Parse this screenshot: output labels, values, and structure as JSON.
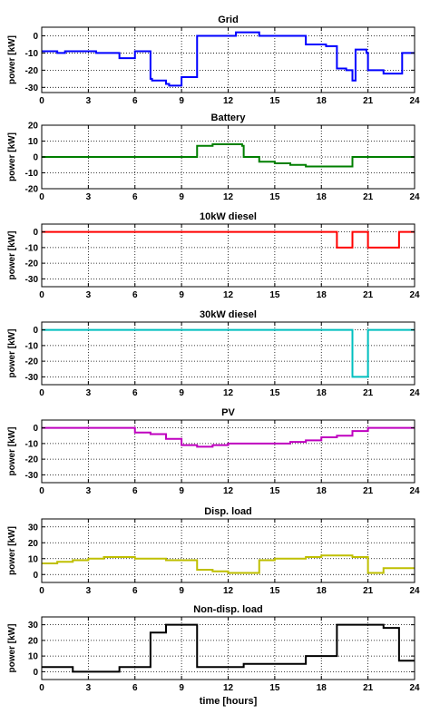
{
  "chart_data": [
    {
      "type": "line",
      "title": "Grid",
      "ylabel": "power [kW]",
      "xlabel": "",
      "xlim": [
        0,
        24
      ],
      "ylim": [
        -33,
        5
      ],
      "xticks": [
        0,
        3,
        6,
        9,
        12,
        15,
        18,
        21,
        24
      ],
      "yticks": [
        0,
        -10,
        -20,
        -30
      ],
      "grid": true,
      "color": "#0000ff",
      "series": [
        {
          "x": [
            0,
            1,
            1.5,
            3.5,
            5,
            6,
            7,
            7.1,
            8,
            8.2,
            9,
            10,
            12.5,
            14,
            17,
            18.3,
            19,
            19.6,
            20,
            20.2,
            20.9,
            21,
            22,
            23.2,
            24
          ],
          "y": [
            -9,
            -10,
            -9,
            -10,
            -13,
            -9,
            -25,
            -26,
            -28,
            -29,
            -24,
            0,
            2,
            0,
            -5,
            -6,
            -19,
            -20,
            -26,
            -8,
            -10,
            -20,
            -22,
            -10,
            -10
          ]
        }
      ]
    },
    {
      "type": "line",
      "title": "Battery",
      "ylabel": "power [kW]",
      "xlabel": "",
      "xlim": [
        0,
        24
      ],
      "ylim": [
        -20,
        20
      ],
      "xticks": [
        0,
        3,
        6,
        9,
        12,
        15,
        18,
        21,
        24
      ],
      "yticks": [
        20,
        10,
        0,
        -10,
        -20
      ],
      "grid": true,
      "color": "#007f00",
      "series": [
        {
          "x": [
            0,
            10,
            11,
            12.9,
            13,
            14,
            15,
            16,
            17,
            20,
            24
          ],
          "y": [
            0,
            7,
            8,
            7,
            0,
            -3,
            -4,
            -5,
            -6,
            0,
            0
          ]
        }
      ]
    },
    {
      "type": "line",
      "title": "10kW diesel",
      "ylabel": "power [kW]",
      "xlabel": "",
      "xlim": [
        0,
        24
      ],
      "ylim": [
        -35,
        5
      ],
      "xticks": [
        0,
        3,
        6,
        9,
        12,
        15,
        18,
        21,
        24
      ],
      "yticks": [
        0,
        -10,
        -20,
        -30
      ],
      "grid": true,
      "color": "#ff0000",
      "series": [
        {
          "x": [
            0,
            19,
            20,
            21,
            23,
            24
          ],
          "y": [
            0,
            -10,
            0,
            -10,
            0,
            0
          ]
        }
      ]
    },
    {
      "type": "line",
      "title": "30kW diesel",
      "ylabel": "power [kW]",
      "xlabel": "",
      "xlim": [
        0,
        24
      ],
      "ylim": [
        -35,
        5
      ],
      "xticks": [
        0,
        3,
        6,
        9,
        12,
        15,
        18,
        21,
        24
      ],
      "yticks": [
        0,
        -10,
        -20,
        -30
      ],
      "grid": true,
      "color": "#00bfbf",
      "series": [
        {
          "x": [
            0,
            20,
            21,
            24
          ],
          "y": [
            0,
            -30,
            0,
            0
          ]
        }
      ]
    },
    {
      "type": "line",
      "title": "PV",
      "ylabel": "power [kW]",
      "xlabel": "",
      "xlim": [
        0,
        24
      ],
      "ylim": [
        -35,
        5
      ],
      "xticks": [
        0,
        3,
        6,
        9,
        12,
        15,
        18,
        21,
        24
      ],
      "yticks": [
        0,
        -10,
        -20,
        -30
      ],
      "grid": true,
      "color": "#bf00bf",
      "series": [
        {
          "x": [
            0,
            6,
            7,
            8,
            9,
            10,
            11,
            12,
            13,
            14,
            15,
            16,
            17,
            18,
            19,
            20,
            21,
            24
          ],
          "y": [
            0,
            -3,
            -4,
            -7,
            -11,
            -12,
            -11,
            -10,
            -10,
            -10,
            -10,
            -9,
            -8,
            -6,
            -5,
            -2,
            0,
            0
          ]
        }
      ]
    },
    {
      "type": "line",
      "title": "Disp. load",
      "ylabel": "power [kW]",
      "xlabel": "",
      "xlim": [
        0,
        24
      ],
      "ylim": [
        -5,
        35
      ],
      "xticks": [
        0,
        3,
        6,
        9,
        12,
        15,
        18,
        21,
        24
      ],
      "yticks": [
        30,
        20,
        10,
        0
      ],
      "grid": true,
      "color": "#bfbf00",
      "series": [
        {
          "x": [
            0,
            1,
            2,
            3,
            4,
            5,
            6,
            7,
            8,
            9,
            10,
            11,
            12,
            13,
            14,
            15,
            16,
            17,
            18,
            19,
            20,
            21,
            22,
            24
          ],
          "y": [
            7,
            8,
            9,
            10,
            11,
            11,
            10,
            10,
            9,
            9,
            3,
            2,
            1,
            1,
            9,
            10,
            10,
            11,
            12,
            12,
            11,
            1,
            4,
            4
          ]
        }
      ]
    },
    {
      "type": "line",
      "title": "Non-disp. load",
      "ylabel": "power [kW]",
      "xlabel": "time [hours]",
      "xlim": [
        0,
        24
      ],
      "ylim": [
        -5,
        35
      ],
      "xticks": [
        0,
        3,
        6,
        9,
        12,
        15,
        18,
        21,
        24
      ],
      "yticks": [
        30,
        20,
        10,
        0
      ],
      "grid": true,
      "color": "#000000",
      "series": [
        {
          "x": [
            0,
            2,
            5,
            7,
            8,
            10,
            13,
            17,
            19,
            22,
            23,
            24
          ],
          "y": [
            3,
            0,
            3,
            25,
            30,
            3,
            5,
            10,
            30,
            28,
            7,
            7
          ]
        }
      ]
    }
  ]
}
